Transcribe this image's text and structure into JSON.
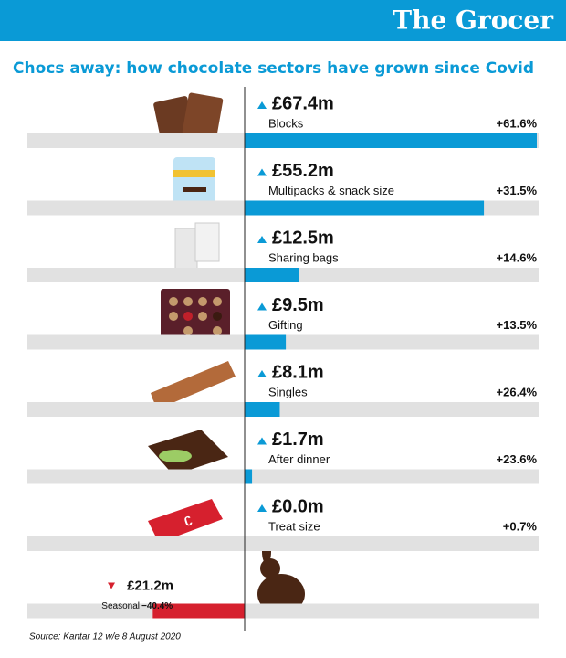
{
  "chart_data": {
    "type": "bar",
    "brand": "The Grocer",
    "title": "Chocs away: how chocolate sectors have grown since Covid",
    "categories": [
      "Blocks",
      "Multipacks & snack size",
      "Sharing bags",
      "Gifting",
      "Singles",
      "After dinner",
      "Treat size",
      "Seasonal"
    ],
    "values": [
      67.4,
      55.2,
      12.5,
      9.5,
      8.1,
      1.7,
      0.0,
      -21.2
    ],
    "value_labels": [
      "£67.4m",
      "£55.2m",
      "£12.5m",
      "£9.5m",
      "£8.1m",
      "£1.7m",
      "£0.0m",
      "£21.2m"
    ],
    "growth_labels": [
      "+61.6%",
      "+31.5%",
      "+14.6%",
      "+13.5%",
      "+26.4%",
      "+23.6%",
      "+0.7%",
      "−40.4%"
    ],
    "color": "#0a9ad6",
    "negative_color": "#d6202e",
    "source": "Source: Kantar 12 w/e 8 August 2020"
  }
}
